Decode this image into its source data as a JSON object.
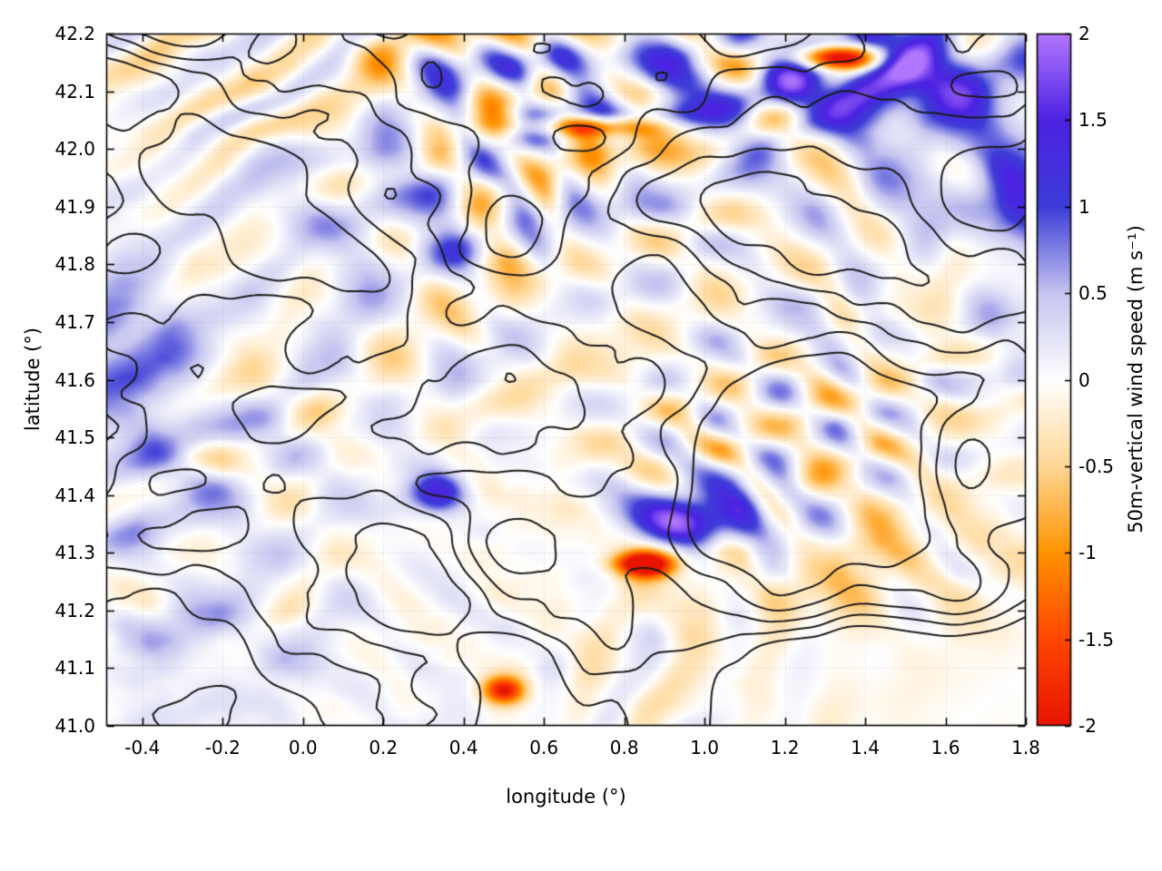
{
  "figure": {
    "background": "#ffffff"
  },
  "chart_data": {
    "type": "heatmap",
    "title": "",
    "xlabel": "longitude (°)",
    "ylabel": "latitude (°)",
    "x_range": [
      -0.49,
      1.8
    ],
    "y_range": [
      41.0,
      42.2
    ],
    "x_ticks": [
      -0.4,
      -0.2,
      0.0,
      0.2,
      0.4,
      0.6,
      0.8,
      1.0,
      1.2,
      1.4,
      1.6,
      1.8
    ],
    "x_tick_labels": [
      "-0.4",
      "-0.2",
      "0.0",
      "0.2",
      "0.4",
      "0.6",
      "0.8",
      "1.0",
      "1.2",
      "1.4",
      "1.6",
      "1.8"
    ],
    "y_ticks": [
      41.0,
      41.1,
      41.2,
      41.3,
      41.4,
      41.5,
      41.6,
      41.7,
      41.8,
      41.9,
      42.0,
      42.1,
      42.2
    ],
    "y_tick_labels": [
      "41.0",
      "41.1",
      "41.2",
      "41.3",
      "41.4",
      "41.5",
      "41.6",
      "41.7",
      "41.8",
      "41.9",
      "42.0",
      "42.1",
      "42.2"
    ],
    "grid": true,
    "frame_ticks": "inward-mirrored",
    "contour_color": "#1b1b1b",
    "colorbar": {
      "label": "50m-vertical wind speed (m s⁻¹)",
      "range": [
        -2,
        2
      ],
      "ticks": [
        2,
        1.5,
        1,
        0.5,
        0,
        -0.5,
        -1,
        -1.5,
        -2
      ],
      "tick_labels": [
        "2",
        "1.5",
        "1",
        "0.5",
        "0",
        "-0.5",
        "-1",
        "-1.5",
        "-2"
      ],
      "stops": [
        {
          "v": -2,
          "color": "#e81400"
        },
        {
          "v": -1.5,
          "color": "#ff4600"
        },
        {
          "v": -1,
          "color": "#ff9300"
        },
        {
          "v": -0.5,
          "color": "#ffd795"
        },
        {
          "v": 0,
          "color": "#ffffff"
        },
        {
          "v": 0.5,
          "color": "#c6c6f0"
        },
        {
          "v": 1,
          "color": "#3d3dd8"
        },
        {
          "v": 1.5,
          "color": "#4c22e2"
        },
        {
          "v": 2,
          "color": "#b277ff"
        }
      ]
    },
    "features": {
      "strong_downdrafts": [
        {
          "lon": 1.33,
          "lat": 42.16,
          "value": -2
        },
        {
          "lon": 0.72,
          "lat": 42.04,
          "value": -1.5
        },
        {
          "lon": 0.85,
          "lat": 41.28,
          "value": -2
        },
        {
          "lon": 0.5,
          "lat": 41.06,
          "value": -1.5
        }
      ],
      "strong_updrafts": [
        {
          "lon": 1.45,
          "lat": 42.12,
          "value": 1.5
        },
        {
          "lon": 0.33,
          "lat": 41.4,
          "value": 1.2
        },
        {
          "lon": 0.95,
          "lat": 41.35,
          "value": 1.2
        }
      ]
    }
  }
}
